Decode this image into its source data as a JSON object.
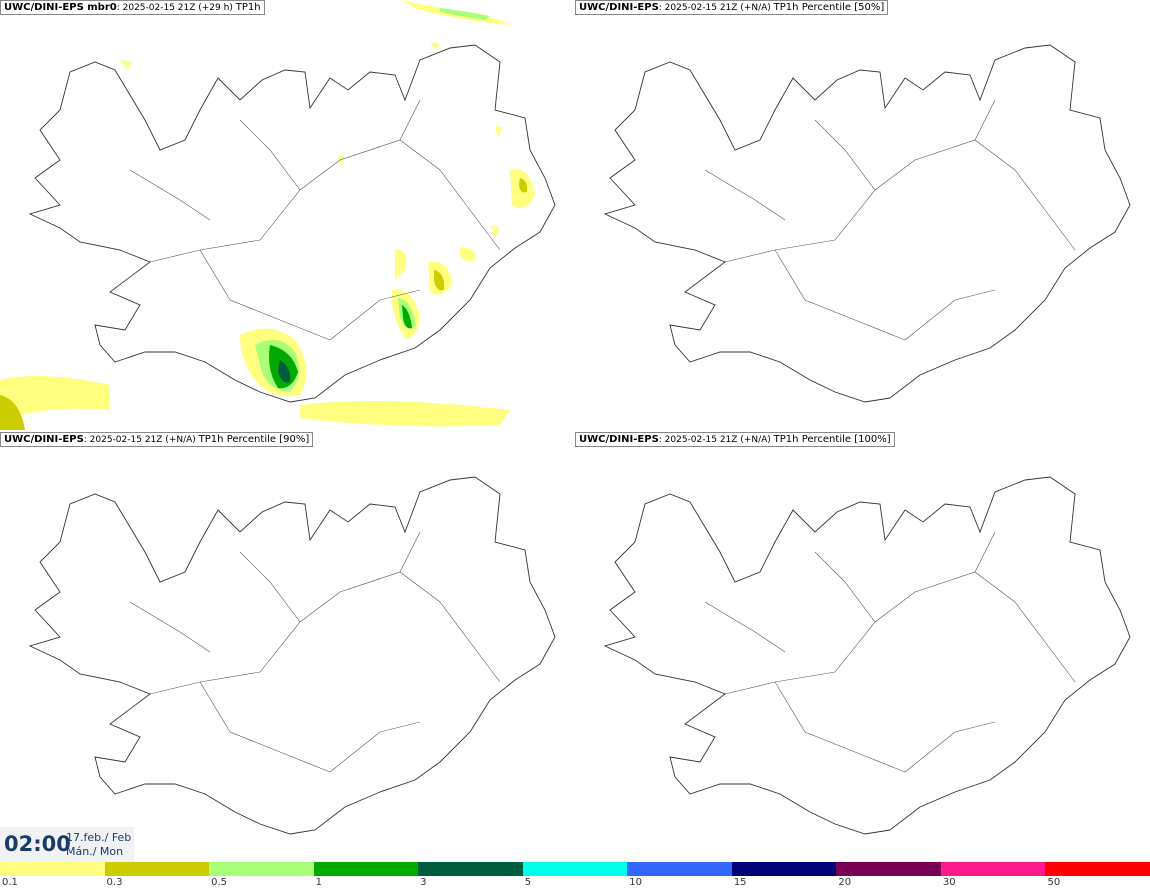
{
  "panels": [
    {
      "model": "UWC/DINI-EPS mbr0",
      "info": ": 2025-02-15 21Z (+29 h)",
      "field": "TP1h",
      "precip": true
    },
    {
      "model": "UWC/DINI-EPS",
      "info": ": 2025-02-15 21Z (+N/A)",
      "field": "TP1h Percentile [50%]",
      "precip": false
    },
    {
      "model": "UWC/DINI-EPS",
      "info": ": 2025-02-15 21Z (+N/A)",
      "field": "TP1h Percentile [90%]",
      "precip": false
    },
    {
      "model": "UWC/DINI-EPS",
      "info": ": 2025-02-15 21Z (+N/A)",
      "field": "TP1h Percentile [100%]",
      "precip": false
    }
  ],
  "time": {
    "clock": "02:00",
    "date": "17.feb./ Feb",
    "day": "Mán./ Mon"
  },
  "legend": {
    "labels": [
      "0.1",
      "0.3",
      "0.5",
      "1",
      "3",
      "5",
      "10",
      "15",
      "20",
      "30",
      "50"
    ],
    "colors": [
      "#ffff80",
      "#cccc00",
      "#aaff78",
      "#00aa00",
      "#005c3e",
      "#00ffe8",
      "#3366ff",
      "#000077",
      "#770055",
      "#ff1a8c",
      "#ff0000"
    ]
  }
}
